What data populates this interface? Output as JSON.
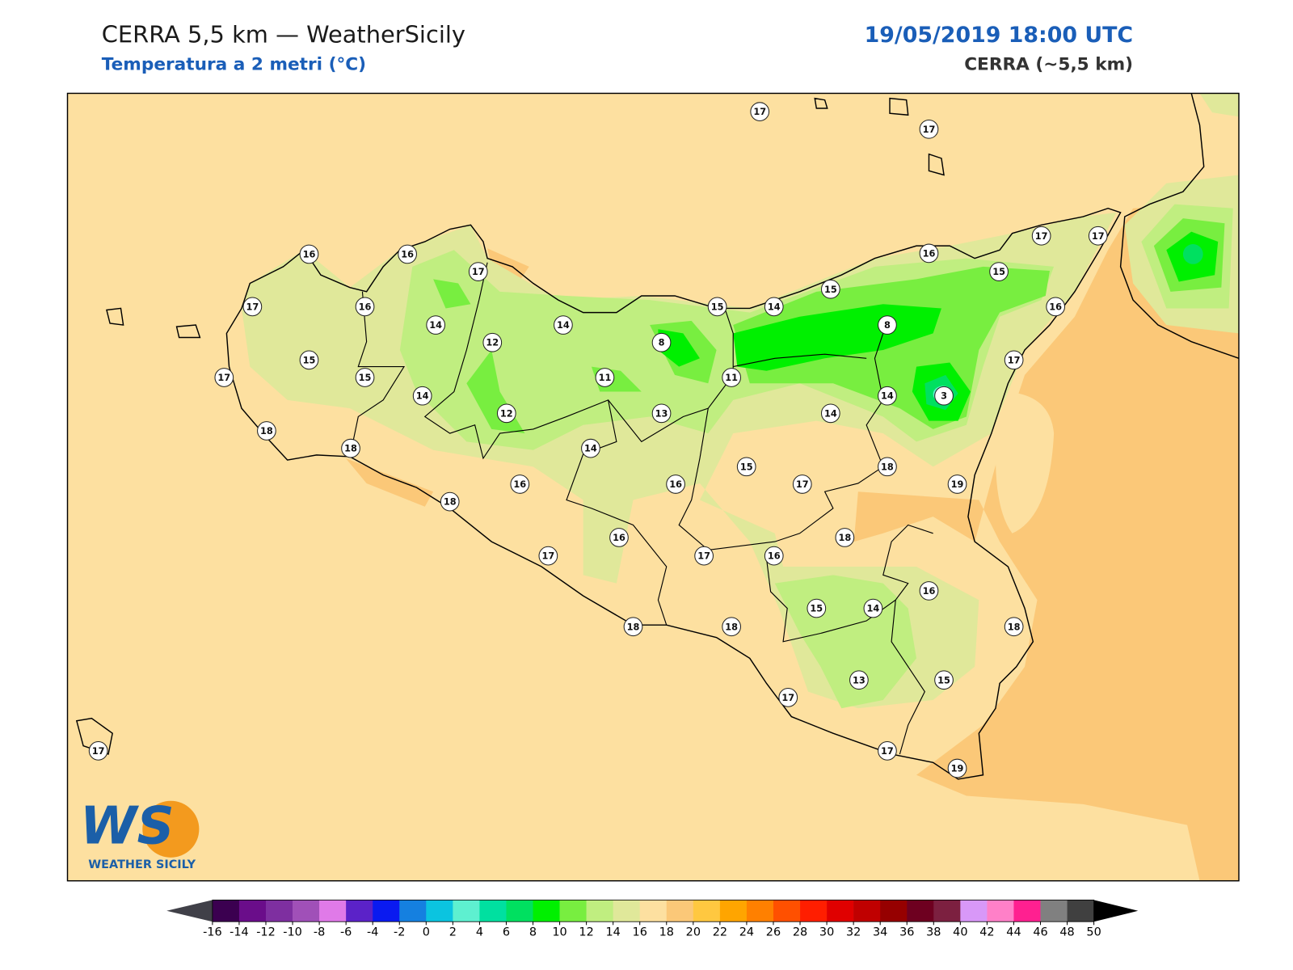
{
  "header": {
    "title": "CERRA 5,5 km — WeatherSicily",
    "subtitle": "Temperatura a 2 metri (°C)",
    "datetime": "19/05/2019 18:00 UTC",
    "model": "CERRA (~5,5 km)"
  },
  "stations": [
    {
      "value": 17
    },
    {
      "value": 17
    },
    {
      "value": 16
    },
    {
      "value": 16
    },
    {
      "value": 17
    },
    {
      "value": 16
    },
    {
      "value": 17
    },
    {
      "value": 17
    },
    {
      "value": 15
    },
    {
      "value": 15
    },
    {
      "value": 17
    },
    {
      "value": 16
    },
    {
      "value": 15
    },
    {
      "value": 14
    },
    {
      "value": 16
    },
    {
      "value": 14
    },
    {
      "value": 14
    },
    {
      "value": 8
    },
    {
      "value": 12
    },
    {
      "value": 8
    },
    {
      "value": 15
    },
    {
      "value": 17
    },
    {
      "value": 17
    },
    {
      "value": 15
    },
    {
      "value": 11
    },
    {
      "value": 11
    },
    {
      "value": 14
    },
    {
      "value": 14
    },
    {
      "value": 3
    },
    {
      "value": 12
    },
    {
      "value": 13
    },
    {
      "value": 14
    },
    {
      "value": 18
    },
    {
      "value": 18
    },
    {
      "value": 14
    },
    {
      "value": 15
    },
    {
      "value": 18
    },
    {
      "value": 16
    },
    {
      "value": 16
    },
    {
      "value": 17
    },
    {
      "value": 19
    },
    {
      "value": 18
    },
    {
      "value": 18
    },
    {
      "value": 16
    },
    {
      "value": 17
    },
    {
      "value": 17
    },
    {
      "value": 16
    },
    {
      "value": 16
    },
    {
      "value": 15
    },
    {
      "value": 14
    },
    {
      "value": 18
    },
    {
      "value": 18
    },
    {
      "value": 18
    },
    {
      "value": 13
    },
    {
      "value": 15
    },
    {
      "value": 17
    },
    {
      "value": 17
    },
    {
      "value": 17
    },
    {
      "value": 19
    }
  ],
  "colorbar": {
    "ticks": [
      -16,
      -14,
      -12,
      -10,
      -8,
      -6,
      -4,
      -2,
      0,
      2,
      4,
      6,
      8,
      10,
      12,
      14,
      16,
      18,
      20,
      22,
      24,
      26,
      28,
      30,
      32,
      34,
      36,
      38,
      40,
      42,
      44,
      46,
      48,
      50
    ],
    "colors": [
      "#3b0050",
      "#6a0d8a",
      "#7e2fa0",
      "#a050b8",
      "#e07ae8",
      "#5b22c8",
      "#0a1af0",
      "#1580e0",
      "#0bc4e0",
      "#5ef0d0",
      "#00e0a0",
      "#00e060",
      "#00f000",
      "#78ee40",
      "#c0ee80",
      "#e0e89a",
      "#fde0a0",
      "#fbc878",
      "#ffc840",
      "#ffa500",
      "#ff8000",
      "#ff5000",
      "#ff1e00",
      "#e00000",
      "#c00000",
      "#960000",
      "#6e0020",
      "#7c2040",
      "#d898f8",
      "#ff80c8",
      "#ff2090",
      "#808080",
      "#404040"
    ],
    "under_color": "#404048",
    "over_color": "#000000"
  },
  "logo": {
    "mark": "WS",
    "text": "WEATHER SICILY"
  }
}
